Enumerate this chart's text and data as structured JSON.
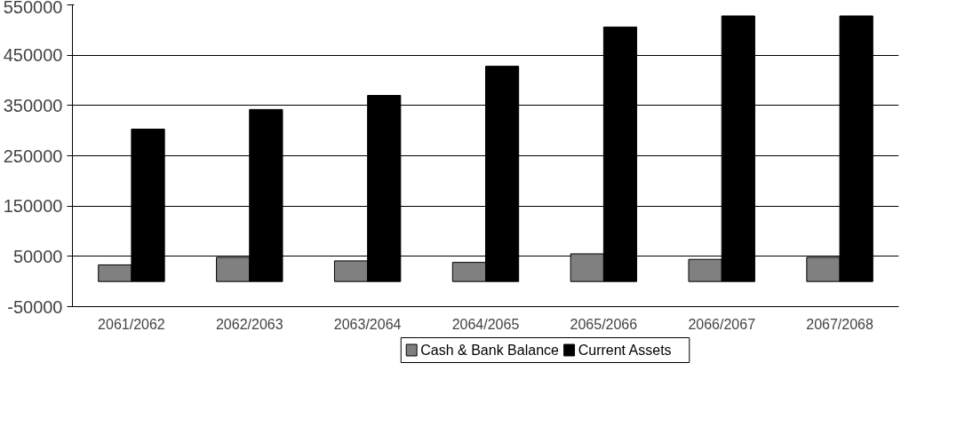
{
  "chart_data": {
    "type": "bar",
    "categories": [
      "2061/2062",
      "2062/2063",
      "2063/2064",
      "2064/2065",
      "2065/2066",
      "2066/2067",
      "2067/2068"
    ],
    "series": [
      {
        "name": "Cash & Bank Balance",
        "color": "#808080",
        "values": [
          33000,
          48000,
          41000,
          38000,
          55000,
          44000,
          48000
        ]
      },
      {
        "name": "Current Assets",
        "color": "#000000",
        "values": [
          303000,
          342000,
          370000,
          428000,
          506000,
          528000,
          528000
        ]
      }
    ],
    "ylim": [
      -50000,
      550000
    ],
    "yticks": [
      -50000,
      50000,
      150000,
      250000,
      350000,
      450000,
      550000
    ],
    "grid": "y",
    "legend": "bottom"
  }
}
